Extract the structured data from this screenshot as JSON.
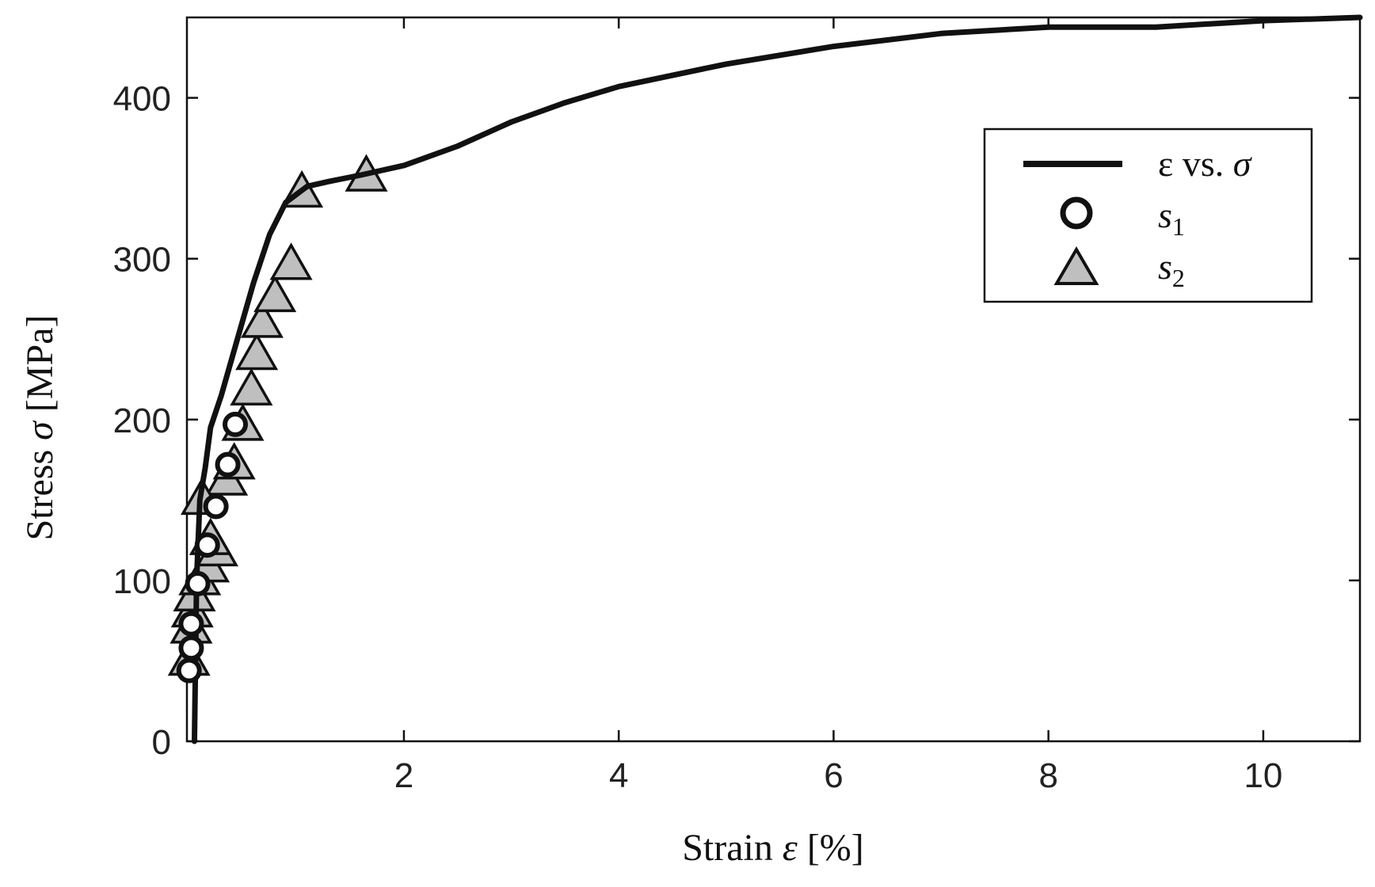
{
  "chart_data": {
    "type": "line",
    "xlabel": {
      "prefix": "Strain ",
      "symbol": "ε",
      "suffix": " [%]"
    },
    "ylabel": {
      "prefix": "Stress ",
      "symbol": "σ",
      "suffix": " [MPa]"
    },
    "xlim": [
      -0.02,
      10.9
    ],
    "ylim": [
      0,
      450
    ],
    "xticks": [
      2,
      4,
      6,
      8,
      10
    ],
    "yticks": [
      0,
      100,
      200,
      300,
      400
    ],
    "grid": false,
    "legend": {
      "position": "top-right",
      "entries": [
        {
          "text": "ε vs. ",
          "italic": "σ",
          "marker": "line"
        },
        {
          "italic": "s",
          "sub": "1",
          "marker": "circle"
        },
        {
          "italic": "s",
          "sub": "2",
          "marker": "triangle"
        }
      ]
    },
    "colors": {
      "line": "#111111",
      "triangle_fill": "#bfbfbf",
      "circle_fill": "#ffffff",
      "marker_edge": "#111111"
    },
    "series": [
      {
        "name": "ε vs. σ",
        "type": "line",
        "x": [
          0.05,
          0.07,
          0.1,
          0.15,
          0.2,
          0.3,
          0.45,
          0.6,
          0.75,
          0.9,
          1.0,
          1.1,
          1.3,
          1.6,
          2.0,
          2.5,
          3.0,
          3.5,
          4.0,
          5.0,
          6.0,
          7.0,
          8.0,
          9.0,
          10.0,
          10.9
        ],
        "y": [
          0,
          100,
          150,
          170,
          195,
          215,
          250,
          285,
          315,
          335,
          340,
          345,
          348,
          352,
          358,
          370,
          385,
          397,
          407,
          421,
          432,
          440,
          444,
          444,
          448,
          450
        ]
      },
      {
        "name": "s1",
        "type": "scatter",
        "marker": "circle",
        "x": [
          0.0,
          0.02,
          0.02,
          0.08,
          0.17,
          0.25,
          0.36,
          0.43
        ],
        "y": [
          44,
          58,
          73,
          98,
          122,
          146,
          172,
          197
        ]
      },
      {
        "name": "s2",
        "type": "scatter",
        "marker": "triangle",
        "x": [
          0.0,
          0.02,
          0.03,
          0.05,
          0.1,
          0.18,
          0.26,
          0.35,
          0.42,
          0.58,
          0.63,
          0.68,
          0.8,
          0.95,
          1.05,
          1.65,
          0.12,
          0.2,
          0.5
        ],
        "y": [
          50,
          70,
          80,
          90,
          100,
          108,
          118,
          162,
          172,
          218,
          240,
          260,
          276,
          296,
          341,
          351,
          150,
          125,
          196
        ]
      }
    ]
  }
}
